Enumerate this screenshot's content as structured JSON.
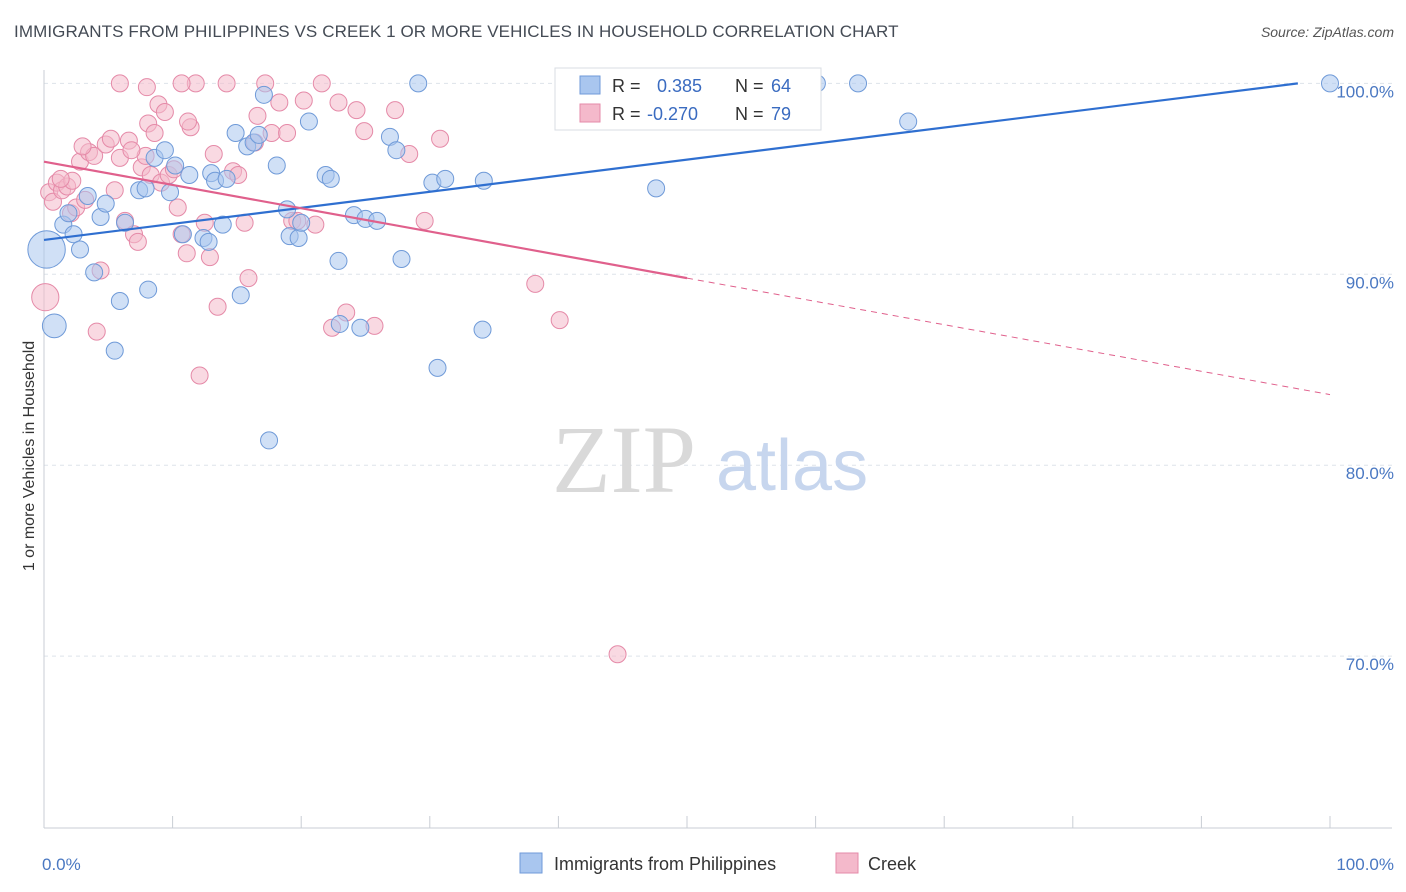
{
  "header": {
    "title": "IMMIGRANTS FROM PHILIPPINES VS CREEK 1 OR MORE VEHICLES IN HOUSEHOLD CORRELATION CHART",
    "source": "Source: ZipAtlas.com"
  },
  "watermark": {
    "zip": "ZIP",
    "atlas": "atlas"
  },
  "legend": {
    "rows": [
      {
        "r_label": "R =",
        "r_value": "0.385",
        "n_label": "N =",
        "n_value": "64",
        "color": "#a9c6ef"
      },
      {
        "r_label": "R =",
        "r_value": "-0.270",
        "n_label": "N =",
        "n_value": "79",
        "color": "#f4b9cb"
      }
    ]
  },
  "bottom_legend": {
    "items": [
      {
        "label": "Immigrants from Philippines",
        "color": "#a9c6ef"
      },
      {
        "label": "Creek",
        "color": "#f4b9cb"
      }
    ]
  },
  "colors": {
    "blue_fill": "#a9c6ef",
    "blue_stroke": "#6f9ad8",
    "blue_line": "#2f6fd0",
    "pink_fill": "#f4b9cb",
    "pink_stroke": "#e58aa8",
    "pink_line": "#e0608c",
    "grid": "#dde3ea",
    "tick_label": "#4a78c2"
  },
  "chart_data": {
    "type": "scatter",
    "title": "IMMIGRANTS FROM PHILIPPINES VS CREEK 1 OR MORE VEHICLES IN HOUSEHOLD CORRELATION CHART",
    "xlabel": "",
    "ylabel": "1 or more Vehicles in Household",
    "xlim": [
      0,
      100
    ],
    "ylim": [
      61,
      100.7
    ],
    "x_tick_labels": [
      {
        "value": 0,
        "label": "0.0%"
      },
      {
        "value": 100,
        "label": "100.0%"
      }
    ],
    "y_tick_labels": [
      {
        "value": 100,
        "label": "100.0%"
      },
      {
        "value": 90,
        "label": "90.0%"
      },
      {
        "value": 80,
        "label": "80.0%"
      },
      {
        "value": 70,
        "label": "70.0%"
      }
    ],
    "grid": true,
    "legend_position": "top-center",
    "series": [
      {
        "name": "Immigrants from Philippines",
        "color": "#a9c6ef",
        "trend": {
          "x0": 0,
          "y0": 91.8,
          "x1": 97.5,
          "y1": 100,
          "dashed_to_x": null
        },
        "points": [
          [
            0.2,
            91.3,
            2.2
          ],
          [
            0.8,
            87.3,
            1.4
          ],
          [
            1.5,
            92.6,
            1
          ],
          [
            1.9,
            93.2,
            1
          ],
          [
            2.3,
            92.1,
            1
          ],
          [
            2.8,
            91.3,
            1
          ],
          [
            3.4,
            94.1,
            1
          ],
          [
            3.9,
            90.1,
            1
          ],
          [
            4.4,
            93.0,
            1
          ],
          [
            4.8,
            93.7,
            1
          ],
          [
            5.5,
            86.0,
            1
          ],
          [
            5.9,
            88.6,
            1
          ],
          [
            6.3,
            92.7,
            1
          ],
          [
            7.4,
            94.4,
            1
          ],
          [
            7.9,
            94.5,
            1
          ],
          [
            8.1,
            89.2,
            1
          ],
          [
            8.6,
            96.1,
            1
          ],
          [
            9.4,
            96.5,
            1
          ],
          [
            9.8,
            94.3,
            1
          ],
          [
            10.2,
            95.7,
            1
          ],
          [
            10.8,
            92.1,
            1
          ],
          [
            11.3,
            95.2,
            1
          ],
          [
            12.4,
            91.9,
            1
          ],
          [
            12.8,
            91.7,
            1
          ],
          [
            13.0,
            95.3,
            1
          ],
          [
            13.3,
            94.9,
            1
          ],
          [
            13.9,
            92.6,
            1
          ],
          [
            14.2,
            95.0,
            1
          ],
          [
            14.9,
            97.4,
            1
          ],
          [
            15.3,
            88.9,
            1
          ],
          [
            15.8,
            96.7,
            1
          ],
          [
            16.3,
            96.9,
            1
          ],
          [
            16.7,
            97.3,
            1
          ],
          [
            17.1,
            99.4,
            1
          ],
          [
            17.5,
            81.3,
            1
          ],
          [
            18.1,
            95.7,
            1
          ],
          [
            18.9,
            93.4,
            1
          ],
          [
            19.1,
            92.0,
            1
          ],
          [
            19.8,
            91.9,
            1
          ],
          [
            20.0,
            92.7,
            1
          ],
          [
            20.6,
            98.0,
            1
          ],
          [
            21.9,
            95.2,
            1
          ],
          [
            22.3,
            95.0,
            1
          ],
          [
            22.9,
            90.7,
            1
          ],
          [
            23.0,
            87.4,
            1
          ],
          [
            24.1,
            93.1,
            1
          ],
          [
            24.6,
            87.2,
            1
          ],
          [
            25.0,
            92.9,
            1
          ],
          [
            25.9,
            92.8,
            1
          ],
          [
            26.9,
            97.2,
            1
          ],
          [
            27.4,
            96.5,
            1
          ],
          [
            27.8,
            90.8,
            1
          ],
          [
            29.1,
            100.0,
            1
          ],
          [
            30.2,
            94.8,
            1
          ],
          [
            30.6,
            85.1,
            1
          ],
          [
            31.2,
            95.0,
            1
          ],
          [
            34.1,
            87.1,
            1
          ],
          [
            34.2,
            94.9,
            1
          ],
          [
            47.6,
            94.5,
            1
          ],
          [
            60.1,
            100.0,
            1
          ],
          [
            63.3,
            100.0,
            1
          ],
          [
            67.2,
            98.0,
            1
          ],
          [
            100.0,
            100.0,
            1
          ],
          [
            97.0,
            100.2,
            0
          ]
        ]
      },
      {
        "name": "Creek",
        "color": "#f4b9cb",
        "trend": {
          "x0": 0,
          "y0": 95.9,
          "x1": 50,
          "y1": 89.8,
          "dashed_to_x": 100
        },
        "points": [
          [
            0.1,
            88.8,
            1.6
          ],
          [
            0.4,
            94.3,
            1
          ],
          [
            0.7,
            93.8,
            1
          ],
          [
            1.0,
            94.8,
            1
          ],
          [
            1.4,
            94.4,
            1
          ],
          [
            1.8,
            94.6,
            1
          ],
          [
            2.1,
            93.2,
            1
          ],
          [
            2.5,
            93.5,
            1
          ],
          [
            2.8,
            95.9,
            1
          ],
          [
            3.2,
            93.9,
            1
          ],
          [
            3.5,
            96.4,
            1
          ],
          [
            3.9,
            96.2,
            1
          ],
          [
            4.1,
            87.0,
            1
          ],
          [
            4.4,
            90.2,
            1
          ],
          [
            4.8,
            96.8,
            1
          ],
          [
            5.2,
            97.1,
            1
          ],
          [
            5.5,
            94.4,
            1
          ],
          [
            5.9,
            96.1,
            1
          ],
          [
            6.3,
            92.8,
            1
          ],
          [
            6.6,
            97.0,
            1
          ],
          [
            7.0,
            92.1,
            1
          ],
          [
            7.3,
            91.7,
            1
          ],
          [
            7.6,
            95.6,
            1
          ],
          [
            7.9,
            96.2,
            1
          ],
          [
            8.1,
            97.9,
            1
          ],
          [
            8.3,
            95.2,
            1
          ],
          [
            8.6,
            97.4,
            1
          ],
          [
            8.9,
            98.9,
            1
          ],
          [
            9.1,
            94.8,
            1
          ],
          [
            9.4,
            98.5,
            1
          ],
          [
            9.7,
            95.2,
            1
          ],
          [
            10.1,
            95.5,
            1
          ],
          [
            10.4,
            93.5,
            1
          ],
          [
            10.7,
            92.1,
            1
          ],
          [
            11.1,
            91.1,
            1
          ],
          [
            11.4,
            97.7,
            1
          ],
          [
            11.8,
            100.0,
            1
          ],
          [
            12.1,
            84.7,
            1
          ],
          [
            12.5,
            92.7,
            1
          ],
          [
            12.9,
            90.9,
            1
          ],
          [
            13.2,
            96.3,
            1
          ],
          [
            13.5,
            88.3,
            1
          ],
          [
            14.2,
            100.0,
            1
          ],
          [
            14.7,
            95.4,
            1
          ],
          [
            15.1,
            95.2,
            1
          ],
          [
            15.6,
            92.7,
            1
          ],
          [
            15.9,
            89.8,
            1
          ],
          [
            16.4,
            96.9,
            1
          ],
          [
            16.6,
            98.3,
            1
          ],
          [
            17.2,
            100.0,
            1
          ],
          [
            17.7,
            97.4,
            1
          ],
          [
            18.3,
            99.0,
            1
          ],
          [
            18.9,
            97.4,
            1
          ],
          [
            19.3,
            92.8,
            1
          ],
          [
            19.7,
            92.8,
            1
          ],
          [
            20.2,
            99.1,
            1
          ],
          [
            21.1,
            92.6,
            1
          ],
          [
            21.6,
            100.0,
            1
          ],
          [
            22.4,
            87.2,
            1
          ],
          [
            22.9,
            99.0,
            1
          ],
          [
            23.5,
            88.0,
            1
          ],
          [
            24.3,
            98.6,
            1
          ],
          [
            24.9,
            97.5,
            1
          ],
          [
            25.7,
            87.3,
            1
          ],
          [
            27.3,
            98.6,
            1
          ],
          [
            28.4,
            96.3,
            1
          ],
          [
            29.6,
            92.8,
            1
          ],
          [
            30.8,
            97.1,
            1
          ],
          [
            38.2,
            89.5,
            1
          ],
          [
            40.1,
            87.6,
            1
          ],
          [
            44.6,
            70.1,
            1
          ],
          [
            5.9,
            100.0,
            1
          ],
          [
            8.0,
            99.8,
            1
          ],
          [
            10.7,
            100.0,
            1
          ],
          [
            11.2,
            98.0,
            1
          ],
          [
            3.0,
            96.7,
            1
          ],
          [
            6.8,
            96.5,
            1
          ],
          [
            2.2,
            94.9,
            1
          ],
          [
            1.3,
            95.0,
            1
          ]
        ]
      }
    ]
  }
}
